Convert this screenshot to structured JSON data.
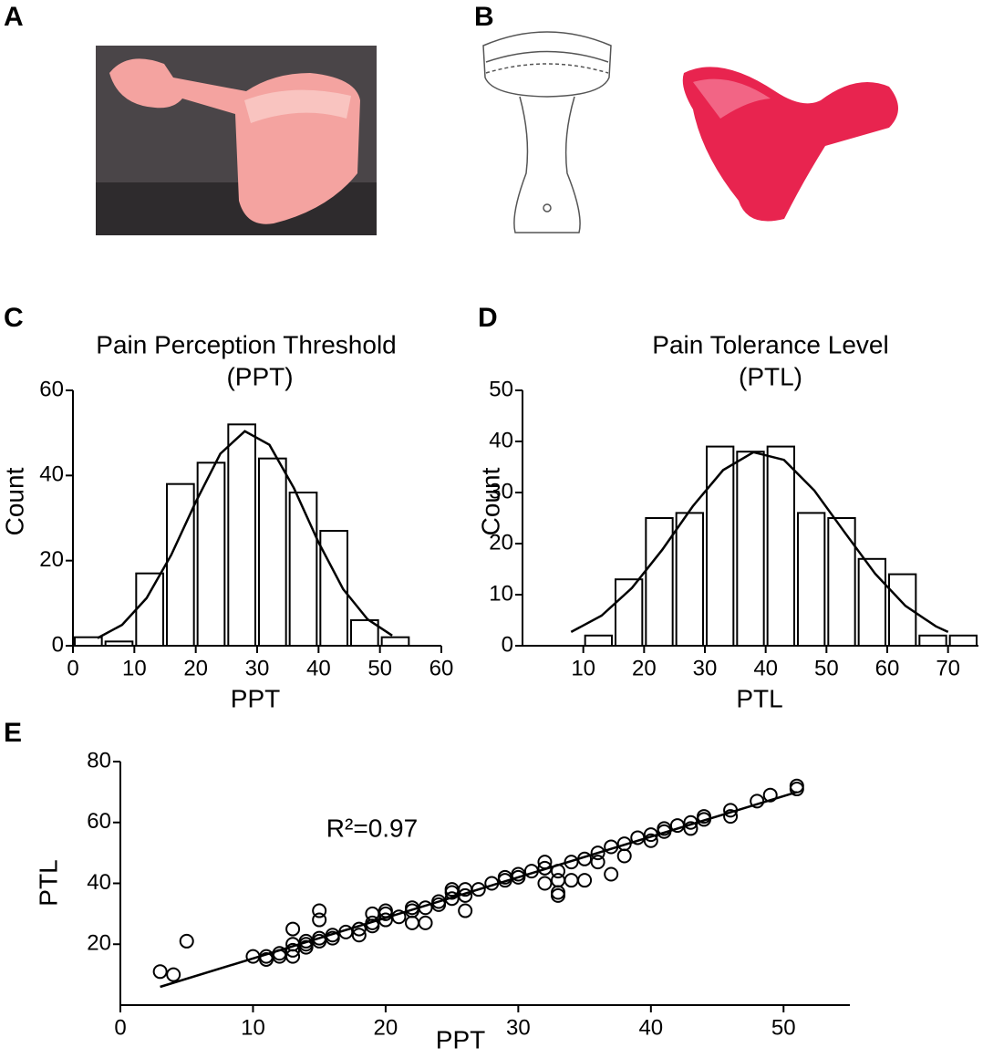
{
  "panel_labels": [
    "A",
    "B"
  ],
  "chart_data": [
    {
      "type": "histogram",
      "panel": "C",
      "title": "Pain Perception Threshold",
      "subtitle": "(PPT)",
      "x_label": "PPT",
      "y_label": "Count",
      "bins": [
        0,
        5,
        10,
        15,
        20,
        25,
        30,
        35,
        40,
        45,
        50,
        55
      ],
      "values": [
        2,
        1,
        17,
        38,
        43,
        52,
        44,
        36,
        27,
        6,
        2
      ],
      "fit": {
        "x": [
          4,
          8,
          12,
          16,
          20,
          24,
          28,
          32,
          36,
          40,
          44,
          48,
          52
        ],
        "y": [
          1.8,
          4.9,
          11.2,
          21.3,
          33.8,
          45.1,
          50.4,
          47.2,
          37,
          24.3,
          13.3,
          6.2,
          2.4
        ]
      },
      "xlim": [
        0,
        60
      ],
      "xticks": [
        0,
        10,
        20,
        30,
        40,
        50,
        60
      ],
      "ylim": [
        0,
        60
      ],
      "yticks": [
        0,
        20,
        40,
        60
      ],
      "color": "#ffffff"
    },
    {
      "type": "histogram",
      "panel": "D",
      "title": "Pain Tolerance Level",
      "subtitle": "(PTL)",
      "x_label": "PTL",
      "y_label": "Count",
      "bins": [
        10,
        15,
        20,
        25,
        30,
        35,
        40,
        45,
        50,
        55,
        60,
        65,
        70,
        75
      ],
      "values": [
        2,
        13,
        25,
        26,
        39,
        38,
        39,
        26,
        25,
        17,
        14,
        2,
        2
      ],
      "fit": {
        "x": [
          8,
          13,
          18,
          23,
          28,
          33,
          38,
          43,
          48,
          53,
          58,
          63,
          68,
          70
        ],
        "y": [
          2.7,
          5.9,
          11.3,
          18.8,
          27.3,
          34.4,
          37.9,
          36.4,
          30.4,
          22.2,
          14.1,
          7.8,
          3.8,
          2.7
        ]
      },
      "xlim": [
        0,
        75
      ],
      "xticks": [
        10,
        20,
        30,
        40,
        50,
        60,
        70
      ],
      "ylim": [
        0,
        50
      ],
      "yticks": [
        0,
        10,
        20,
        30,
        40,
        50
      ],
      "color": "#ffffff"
    },
    {
      "type": "scatter",
      "panel": "E",
      "x_label": "PPT",
      "y_label": "PTL",
      "annotation": "R²=0.97",
      "x": [
        3,
        4,
        5,
        10,
        11,
        11,
        12,
        12,
        13,
        13,
        13,
        13,
        14,
        14,
        14,
        15,
        15,
        15,
        15,
        16,
        16,
        17,
        18,
        18,
        19,
        19,
        19,
        20,
        20,
        20,
        21,
        22,
        22,
        22,
        23,
        23,
        24,
        24,
        25,
        25,
        25,
        26,
        26,
        26,
        27,
        28,
        29,
        29,
        30,
        30,
        31,
        32,
        32,
        32,
        33,
        33,
        33,
        33,
        34,
        34,
        35,
        35,
        36,
        36,
        37,
        37,
        38,
        38,
        39,
        40,
        40,
        41,
        41,
        42,
        43,
        43,
        44,
        44,
        46,
        46,
        48,
        49,
        51,
        51
      ],
      "y": [
        11,
        10,
        21,
        16,
        15,
        16,
        16,
        17,
        25,
        16,
        18,
        20,
        19,
        20,
        21,
        31,
        28,
        21,
        22,
        22,
        23,
        24,
        23,
        25,
        26,
        30,
        27,
        28,
        30,
        31,
        29,
        31,
        32,
        27,
        27,
        32,
        33,
        34,
        35,
        37,
        38,
        31,
        36,
        38,
        38,
        40,
        41,
        42,
        42,
        43,
        44,
        40,
        45,
        47,
        36,
        37,
        41,
        44,
        41,
        47,
        41,
        48,
        47,
        50,
        43,
        52,
        49,
        53,
        55,
        54,
        56,
        57,
        58,
        59,
        58,
        60,
        61,
        62,
        62,
        64,
        67,
        69,
        71,
        72
      ],
      "fit": {
        "x": [
          3,
          51
        ],
        "y": [
          6,
          70
        ]
      },
      "xlim": [
        0,
        55
      ],
      "xticks": [
        0,
        10,
        20,
        30,
        40,
        50
      ],
      "ylim": [
        0,
        80
      ],
      "yticks": [
        20,
        40,
        60,
        80
      ],
      "color": "#000000"
    }
  ]
}
